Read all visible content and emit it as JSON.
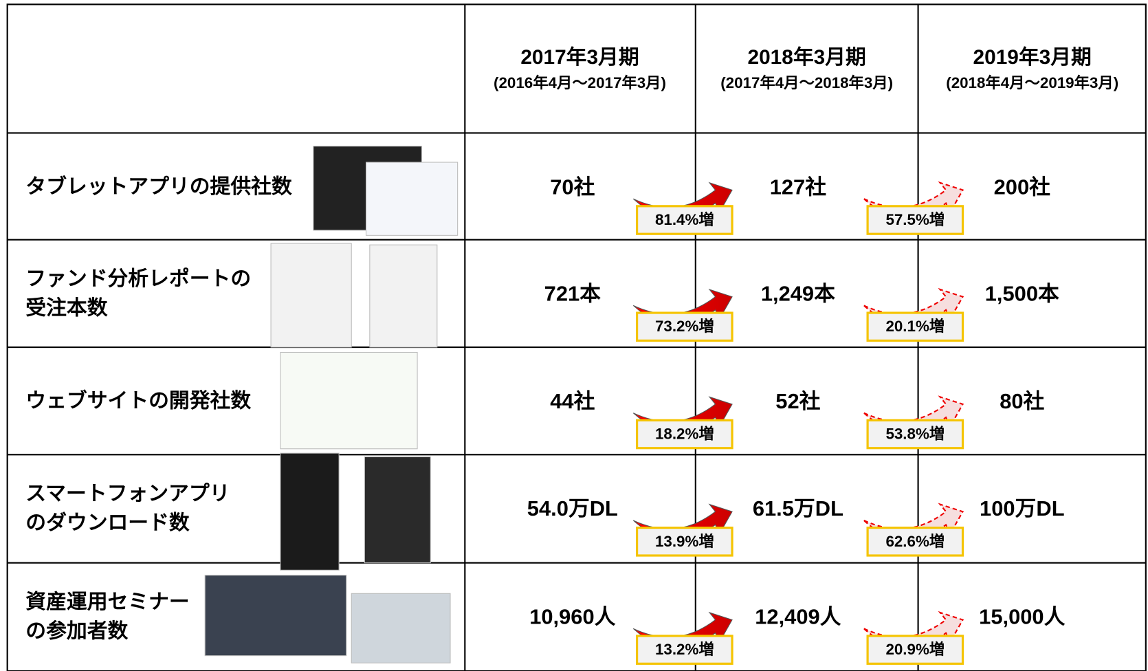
{
  "table": {
    "headers": [
      {
        "period": "2017年3月期",
        "range": "(2016年4月～2017年3月)"
      },
      {
        "period": "2018年3月期",
        "range": "(2017年4月～2018年3月)"
      },
      {
        "period": "2019年3月期",
        "range": "(2018年4月～2019年3月)"
      }
    ],
    "rows": [
      {
        "label": [
          "タブレットアプリの提供社数"
        ],
        "values": [
          "70社",
          "127社",
          "200社"
        ],
        "growth": [
          "81.4%増",
          "57.5%増"
        ]
      },
      {
        "label": [
          "ファンド分析レポートの",
          "受注本数"
        ],
        "values": [
          "721本",
          "1,249本",
          "1,500本"
        ],
        "growth": [
          "73.2%増",
          "20.1%増"
        ]
      },
      {
        "label": [
          "ウェブサイトの開発社数"
        ],
        "values": [
          "44社",
          "52社",
          "80社"
        ],
        "growth": [
          "18.2%増",
          "53.8%増"
        ]
      },
      {
        "label": [
          "スマートフォンアプリ",
          "のダウンロード数"
        ],
        "values": [
          "54.0万DL",
          "61.5万DL",
          "100万DL"
        ],
        "growth": [
          "13.9%増",
          "62.6%増"
        ]
      },
      {
        "label": [
          "資産運用セミナー",
          "の参加者数"
        ],
        "values": [
          "10,960人",
          "12,409人",
          "15,000人"
        ],
        "growth": [
          "13.2%増",
          "20.9%増"
        ]
      }
    ]
  }
}
